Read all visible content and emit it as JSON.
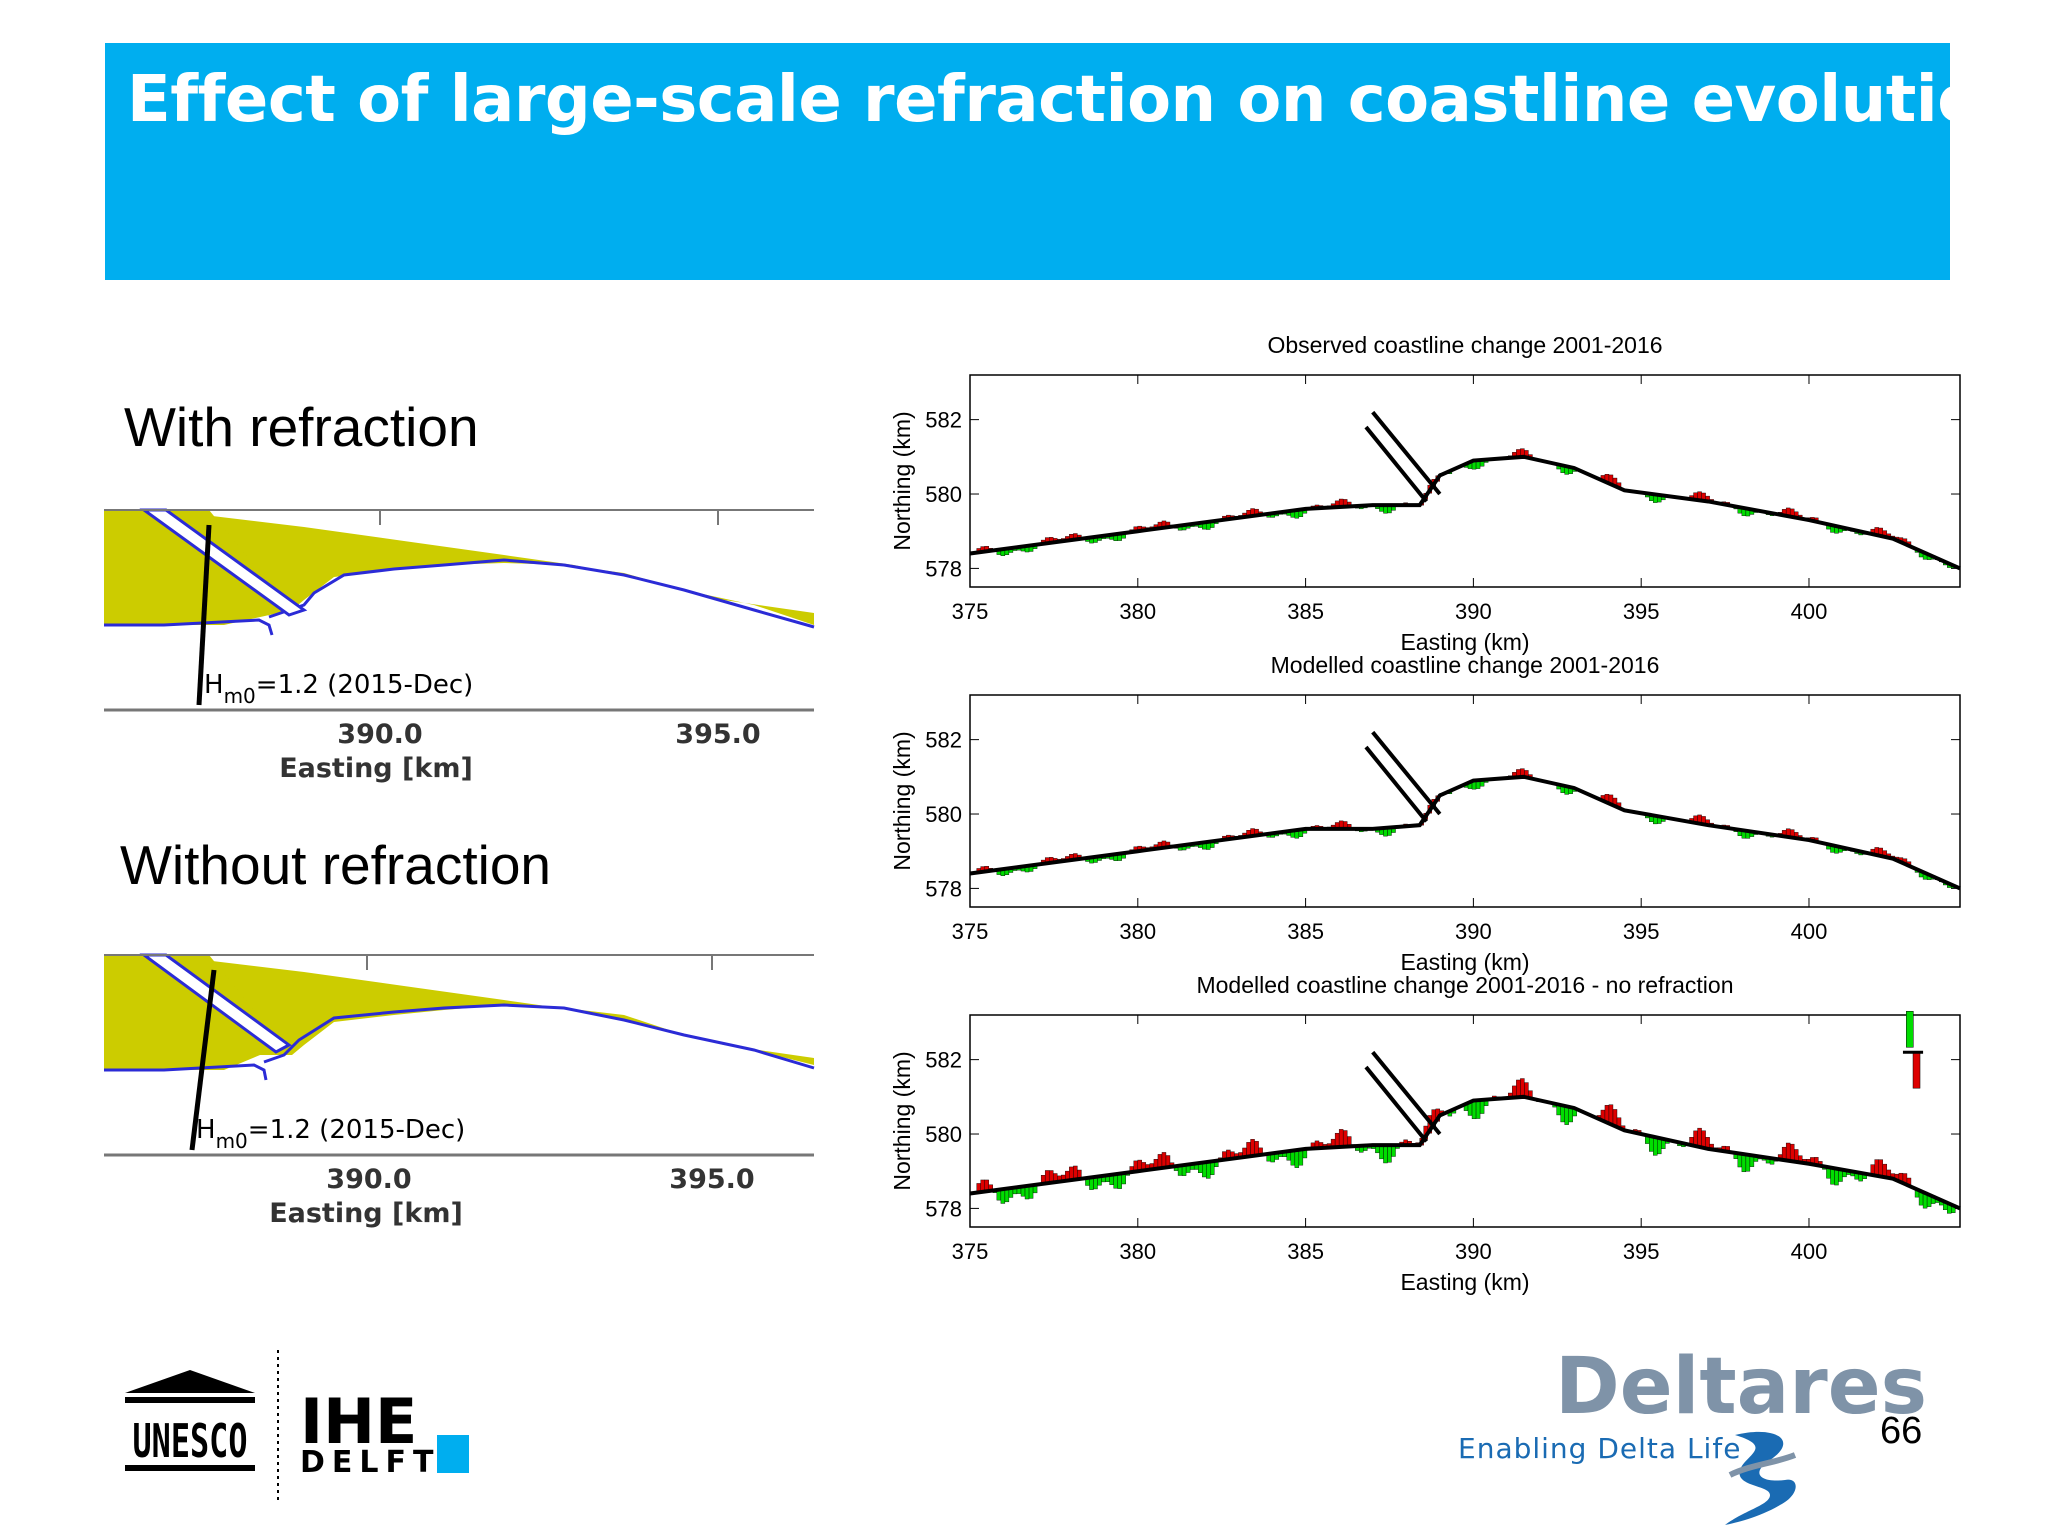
{
  "slide": {
    "title": "Effect of large-scale refraction on coastline evolution",
    "label_with": "With refraction",
    "label_without": "Without refraction",
    "page_number": "66"
  },
  "map_panels": [
    {
      "annotation_prefix": "H",
      "annotation_sub": "m0",
      "annotation_value": "=1.2 (2015-Dec)",
      "tick_labels": [
        "390.0",
        "395.0"
      ],
      "xlabel": "Easting [km]"
    },
    {
      "annotation_prefix": "H",
      "annotation_sub": "m0",
      "annotation_value": "=1.2 (2015-Dec)",
      "tick_labels": [
        "390.0",
        "395.0"
      ],
      "xlabel": "Easting [km]"
    }
  ],
  "logos": {
    "unesco": "UNESCO",
    "ihe": "IHE",
    "delft": "DELFT",
    "deltares": "Deltares",
    "tagline": "Enabling Delta Life"
  },
  "colors": {
    "title_bar": "#00aeef",
    "accretion": "#00dd00",
    "erosion": "#dd0000",
    "sand": "#cccc00",
    "shoreline": "#2b2bd6"
  },
  "chart_data": [
    {
      "type": "line",
      "title": "Observed coastline change 2001-2016",
      "xlabel": "Easting (km)",
      "ylabel": "Northing (km)",
      "xticks": [
        375,
        380,
        385,
        390,
        395,
        400
      ],
      "yticks": [
        578,
        580,
        582
      ],
      "xlim": [
        375,
        404.5
      ],
      "ylim": [
        577.5,
        583.2
      ],
      "x": [
        375,
        380,
        385,
        387,
        388.4,
        389,
        390,
        391.5,
        393,
        394.5,
        397,
        400,
        402.5,
        404.5
      ],
      "y": [
        578.4,
        579.0,
        579.6,
        579.7,
        579.7,
        580.5,
        580.9,
        581.0,
        580.7,
        580.1,
        579.8,
        579.3,
        578.8,
        578.0
      ]
    },
    {
      "type": "line",
      "title": "Modelled coastline change 2001-2016",
      "xlabel": "Easting (km)",
      "ylabel": "Northing (km)",
      "xticks": [
        375,
        380,
        385,
        390,
        395,
        400
      ],
      "yticks": [
        578,
        580,
        582
      ],
      "xlim": [
        375,
        404.5
      ],
      "ylim": [
        577.5,
        583.2
      ],
      "x": [
        375,
        380,
        385,
        387,
        388.4,
        389,
        390,
        391.5,
        393,
        394.5,
        397,
        400,
        402.5,
        404.5
      ],
      "y": [
        578.4,
        579.0,
        579.6,
        579.6,
        579.7,
        580.5,
        580.9,
        581.0,
        580.7,
        580.1,
        579.7,
        579.3,
        578.8,
        578.0
      ]
    },
    {
      "type": "line",
      "title": "Modelled coastline change 2001-2016 - no refraction",
      "xlabel": "Easting (km)",
      "ylabel": "Northing (km)",
      "xticks": [
        375,
        380,
        385,
        390,
        395,
        400
      ],
      "yticks": [
        578,
        580,
        582
      ],
      "xlim": [
        375,
        404.5
      ],
      "ylim": [
        577.5,
        583.2
      ],
      "x": [
        375,
        380,
        385,
        387,
        388.4,
        389,
        390,
        391.5,
        393,
        394.5,
        397,
        400,
        402.5,
        404.5
      ],
      "y": [
        578.4,
        579.0,
        579.6,
        579.7,
        579.7,
        580.5,
        580.9,
        581.0,
        580.7,
        580.1,
        579.6,
        579.2,
        578.8,
        578.0
      ]
    }
  ]
}
